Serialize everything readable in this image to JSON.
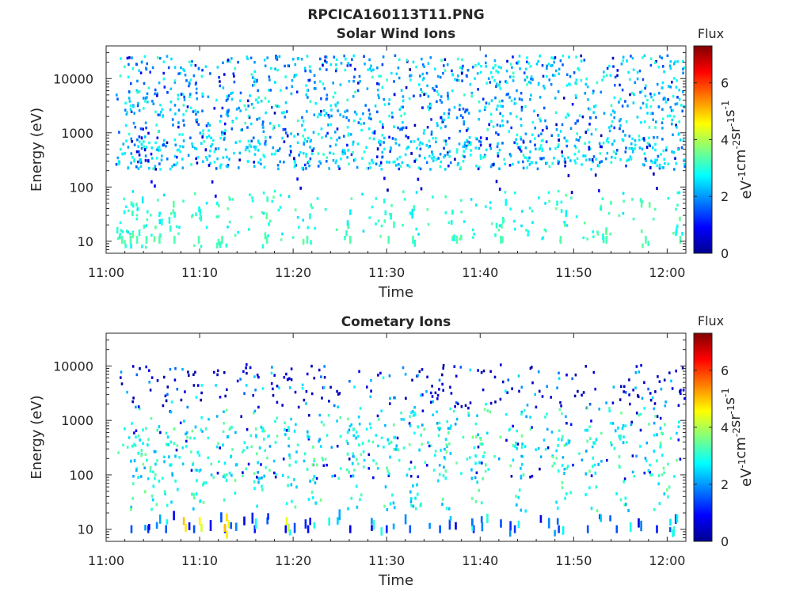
{
  "figure": {
    "title": "RPCICA160113T11.PNG"
  },
  "chart_data": [
    {
      "type": "heatmap",
      "title": "Solar Wind Ions",
      "xlabel": "Time",
      "ylabel": "Energy (eV)",
      "x_ticks": [
        "11:00",
        "11:10",
        "11:20",
        "11:30",
        "11:40",
        "11:50",
        "12:00"
      ],
      "x_range_min": [
        0,
        62
      ],
      "y_scale": "log",
      "y_ticks": [
        10,
        100,
        1000,
        10000
      ],
      "y_tick_labels": [
        "10",
        "100",
        "1000",
        "10000"
      ],
      "y_range": [
        6,
        40000
      ],
      "colorbar": {
        "title": "Flux",
        "label": "eV-1cm-2sr-1s-1",
        "range": [
          0,
          7.3
        ],
        "ticks": [
          0,
          2,
          4,
          6
        ],
        "tick_labels": [
          "0",
          "2",
          "4",
          "6"
        ],
        "colormap": "jet"
      },
      "grid": false,
      "pattern": {
        "seed": 11,
        "n_cells": 1400,
        "low_energy_streaks": [
          1.6,
          2.5,
          3.2,
          4.2,
          5.6,
          7.2,
          9.8,
          12.3,
          17.1,
          21.4,
          26.0,
          30.1,
          32.7,
          37.4,
          42.1,
          48.5,
          53.4,
          57.6,
          61.3
        ],
        "flux_high_band": [
          1.5,
          3.2
        ],
        "flux_low_band": [
          2.5,
          3.2
        ]
      }
    },
    {
      "type": "heatmap",
      "title": "Cometary Ions",
      "xlabel": "Time",
      "ylabel": "Energy (eV)",
      "x_ticks": [
        "11:00",
        "11:10",
        "11:20",
        "11:30",
        "11:40",
        "11:50",
        "12:00"
      ],
      "x_range_min": [
        0,
        62
      ],
      "y_scale": "log",
      "y_ticks": [
        10,
        100,
        1000,
        10000
      ],
      "y_tick_labels": [
        "10",
        "100",
        "1000",
        "10000"
      ],
      "y_range": [
        6,
        40000
      ],
      "colorbar": {
        "title": "Flux",
        "label": "eV-1cm-2sr-1s-1",
        "range": [
          0,
          7.3
        ],
        "ticks": [
          0,
          2,
          4,
          6
        ],
        "tick_labels": [
          "0",
          "2",
          "4",
          "6"
        ],
        "colormap": "jet"
      },
      "grid": false,
      "pattern": {
        "seed": 29,
        "n_cells": 650,
        "streaks": [
          2.4,
          4.2,
          6.1,
          9.1,
          12.4,
          15.6,
          18.9,
          21.3,
          25.8,
          29.7,
          32.2,
          35.4,
          39.0,
          43.4,
          48.1,
          51.2,
          54.3,
          58.6,
          61.8
        ],
        "bright_spots": [
          {
            "t": 9.9,
            "e": 12,
            "v": 4.6
          },
          {
            "t": 12.6,
            "e": 9,
            "v": 5.0
          },
          {
            "t": 12.8,
            "e": 14,
            "v": 4.8
          },
          {
            "t": 19.2,
            "e": 12,
            "v": 4.4
          },
          {
            "t": 8.2,
            "e": 12,
            "v": 5.0
          }
        ]
      }
    }
  ]
}
